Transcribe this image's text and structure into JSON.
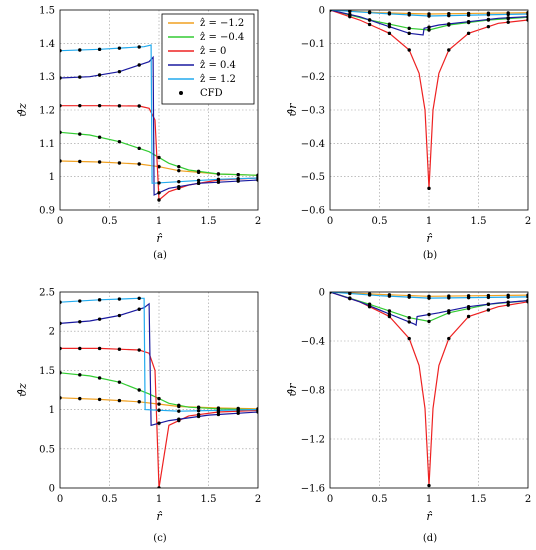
{
  "legend": {
    "placement": "top-right of panel (a)",
    "entries": [
      {
        "label": "ẑ = −1.2",
        "color": "#f0a020"
      },
      {
        "label": "ẑ = −0.4",
        "color": "#33cc33"
      },
      {
        "label": "ẑ = 0",
        "color": "#ee2222"
      },
      {
        "label": "ẑ = 0.4",
        "color": "#1a1aa0"
      },
      {
        "label": "ẑ = 1.2",
        "color": "#22aaee"
      },
      {
        "label": "CFD",
        "color": "#000000",
        "marker": "dot"
      }
    ]
  },
  "chart_data": [
    {
      "panel": "(a)",
      "type": "line",
      "xlabel": "r̂",
      "ylabel": "ϑ̂z",
      "xlim": [
        0,
        2
      ],
      "ylim": [
        0.9,
        1.5
      ],
      "xticks": [
        "0",
        "0.5",
        "1",
        "1.5",
        "2"
      ],
      "yticks": [
        "0.9",
        "1",
        "1.1",
        "1.2",
        "1.3",
        "1.4",
        "1.5"
      ],
      "grid": true,
      "series": [
        {
          "name": "ẑ = −1.2",
          "color": "#f0a020",
          "x": [
            0,
            0.4,
            0.8,
            1.0,
            1.2,
            1.6,
            2.0
          ],
          "y": [
            1.047,
            1.044,
            1.038,
            1.03,
            1.018,
            1.008,
            1.004
          ]
        },
        {
          "name": "ẑ = −0.4",
          "color": "#33cc33",
          "x": [
            0,
            0.3,
            0.6,
            0.9,
            1.1,
            1.3,
            1.6,
            2.0
          ],
          "y": [
            1.133,
            1.125,
            1.105,
            1.075,
            1.04,
            1.02,
            1.008,
            1.004
          ]
        },
        {
          "name": "ẑ = 0",
          "color": "#ee2222",
          "x": [
            0,
            0.4,
            0.8,
            0.9,
            0.96,
            1.0,
            1.1,
            1.3,
            1.6,
            2.0
          ],
          "y": [
            1.213,
            1.213,
            1.212,
            1.205,
            1.17,
            0.93,
            0.955,
            0.975,
            0.99,
            0.996
          ]
        },
        {
          "name": "ẑ = 0.4",
          "color": "#1a1aa0",
          "x": [
            0,
            0.3,
            0.6,
            0.9,
            0.94,
            0.95,
            1.1,
            1.4,
            2.0
          ],
          "y": [
            1.296,
            1.3,
            1.315,
            1.345,
            1.358,
            0.945,
            0.965,
            0.98,
            0.99
          ]
        },
        {
          "name": "ẑ = 1.2",
          "color": "#22aaee",
          "x": [
            0,
            0.4,
            0.85,
            0.92,
            0.93,
            1.2,
            1.6,
            2.0
          ],
          "y": [
            1.378,
            1.382,
            1.39,
            1.395,
            0.98,
            0.985,
            0.992,
            0.996
          ]
        }
      ]
    },
    {
      "panel": "(b)",
      "type": "line",
      "xlabel": "r̂",
      "ylabel": "ϑ̂r",
      "xlim": [
        0,
        2
      ],
      "ylim": [
        -0.6,
        0
      ],
      "xticks": [
        "0",
        "0.5",
        "1",
        "1.5",
        "2"
      ],
      "yticks": [
        "−0.6",
        "−0.5",
        "−0.4",
        "−0.3",
        "−0.2",
        "−0.1",
        "0"
      ],
      "grid": true,
      "series": [
        {
          "name": "ẑ = −1.2",
          "color": "#f0a020",
          "x": [
            0,
            0.5,
            1.0,
            1.5,
            2.0
          ],
          "y": [
            0,
            -0.008,
            -0.012,
            -0.01,
            -0.008
          ]
        },
        {
          "name": "ẑ = −0.4",
          "color": "#33cc33",
          "x": [
            0,
            0.4,
            0.8,
            1.0,
            1.2,
            1.6,
            2.0
          ],
          "y": [
            0,
            -0.03,
            -0.055,
            -0.06,
            -0.045,
            -0.03,
            -0.022
          ]
        },
        {
          "name": "ẑ = 0",
          "color": "#ee2222",
          "x": [
            0,
            0.3,
            0.6,
            0.8,
            0.9,
            0.96,
            1.0,
            1.04,
            1.1,
            1.2,
            1.4,
            1.7,
            2.0
          ],
          "y": [
            0,
            -0.03,
            -0.07,
            -0.12,
            -0.19,
            -0.3,
            -0.535,
            -0.3,
            -0.19,
            -0.12,
            -0.07,
            -0.04,
            -0.03
          ]
        },
        {
          "name": "ẑ = 0.4",
          "color": "#1a1aa0",
          "x": [
            0,
            0.3,
            0.6,
            0.8,
            0.94,
            0.95,
            1.1,
            1.4,
            1.7,
            2.0
          ],
          "y": [
            0,
            -0.02,
            -0.05,
            -0.07,
            -0.075,
            -0.055,
            -0.045,
            -0.035,
            -0.025,
            -0.02
          ]
        },
        {
          "name": "ẑ = 1.2",
          "color": "#22aaee",
          "x": [
            0,
            0.5,
            1.0,
            1.5,
            2.0
          ],
          "y": [
            0,
            -0.01,
            -0.018,
            -0.015,
            -0.012
          ]
        }
      ]
    },
    {
      "panel": "(c)",
      "type": "line",
      "xlabel": "r̂",
      "ylabel": "ϑ̂z",
      "xlim": [
        0,
        2
      ],
      "ylim": [
        0,
        2.5
      ],
      "xticks": [
        "0",
        "0.5",
        "1",
        "1.5",
        "2"
      ],
      "yticks": [
        "0",
        "0.5",
        "1",
        "1.5",
        "2",
        "2.5"
      ],
      "grid": true,
      "series": [
        {
          "name": "ẑ = −1.2",
          "color": "#f0a020",
          "x": [
            0,
            0.4,
            0.8,
            1.0,
            1.2,
            1.6,
            2.0
          ],
          "y": [
            1.15,
            1.13,
            1.1,
            1.07,
            1.04,
            1.02,
            1.01
          ]
        },
        {
          "name": "ẑ = −0.4",
          "color": "#33cc33",
          "x": [
            0,
            0.3,
            0.6,
            0.9,
            1.1,
            1.3,
            1.6,
            2.0
          ],
          "y": [
            1.47,
            1.43,
            1.35,
            1.2,
            1.08,
            1.03,
            1.01,
            1.0
          ]
        },
        {
          "name": "ẑ = 0",
          "color": "#ee2222",
          "x": [
            0,
            0.4,
            0.8,
            0.9,
            0.96,
            1.0,
            1.1,
            1.3,
            1.6,
            2.0
          ],
          "y": [
            1.78,
            1.78,
            1.76,
            1.72,
            1.5,
            0.0,
            0.8,
            0.92,
            0.97,
            0.99
          ]
        },
        {
          "name": "ẑ = 0.4",
          "color": "#1a1aa0",
          "x": [
            0,
            0.3,
            0.6,
            0.85,
            0.9,
            0.92,
            1.1,
            1.5,
            2.0
          ],
          "y": [
            2.1,
            2.13,
            2.2,
            2.3,
            2.35,
            0.8,
            0.86,
            0.93,
            0.97
          ]
        },
        {
          "name": "ẑ = 1.2",
          "color": "#22aaee",
          "x": [
            0,
            0.4,
            0.8,
            0.85,
            0.86,
            1.2,
            1.6,
            2.0
          ],
          "y": [
            2.37,
            2.4,
            2.42,
            2.42,
            1.0,
            0.98,
            0.99,
            1.0
          ]
        }
      ]
    },
    {
      "panel": "(d)",
      "type": "line",
      "xlabel": "r̂",
      "ylabel": "ϑ̂r",
      "xlim": [
        0,
        2
      ],
      "ylim": [
        -1.6,
        0
      ],
      "xticks": [
        "0",
        "0.5",
        "1",
        "1.5",
        "2"
      ],
      "yticks": [
        "−1.6",
        "−1.2",
        "−0.8",
        "−0.4",
        "0"
      ],
      "grid": true,
      "series": [
        {
          "name": "ẑ = −1.2",
          "color": "#f0a020",
          "x": [
            0,
            0.5,
            1.0,
            1.5,
            2.0
          ],
          "y": [
            0,
            -0.02,
            -0.035,
            -0.03,
            -0.025
          ]
        },
        {
          "name": "ẑ = −0.4",
          "color": "#33cc33",
          "x": [
            0,
            0.4,
            0.8,
            1.0,
            1.2,
            1.6,
            2.0
          ],
          "y": [
            0,
            -0.1,
            -0.21,
            -0.24,
            -0.17,
            -0.1,
            -0.07
          ]
        },
        {
          "name": "ẑ = 0",
          "color": "#ee2222",
          "x": [
            0,
            0.3,
            0.6,
            0.8,
            0.9,
            0.96,
            1.0,
            1.04,
            1.1,
            1.2,
            1.4,
            1.7,
            2.0
          ],
          "y": [
            0,
            -0.08,
            -0.2,
            -0.38,
            -0.6,
            -0.95,
            -1.58,
            -0.95,
            -0.6,
            -0.38,
            -0.2,
            -0.12,
            -0.08
          ]
        },
        {
          "name": "ẑ = 0.4",
          "color": "#1a1aa0",
          "x": [
            0,
            0.3,
            0.6,
            0.85,
            0.87,
            0.88,
            1.1,
            1.4,
            1.7,
            2.0
          ],
          "y": [
            0,
            -0.08,
            -0.18,
            -0.26,
            -0.27,
            -0.2,
            -0.17,
            -0.12,
            -0.09,
            -0.07
          ]
        },
        {
          "name": "ẑ = 1.2",
          "color": "#22aaee",
          "x": [
            0,
            0.5,
            1.0,
            1.5,
            2.0
          ],
          "y": [
            0,
            -0.03,
            -0.05,
            -0.045,
            -0.04
          ]
        }
      ]
    }
  ]
}
